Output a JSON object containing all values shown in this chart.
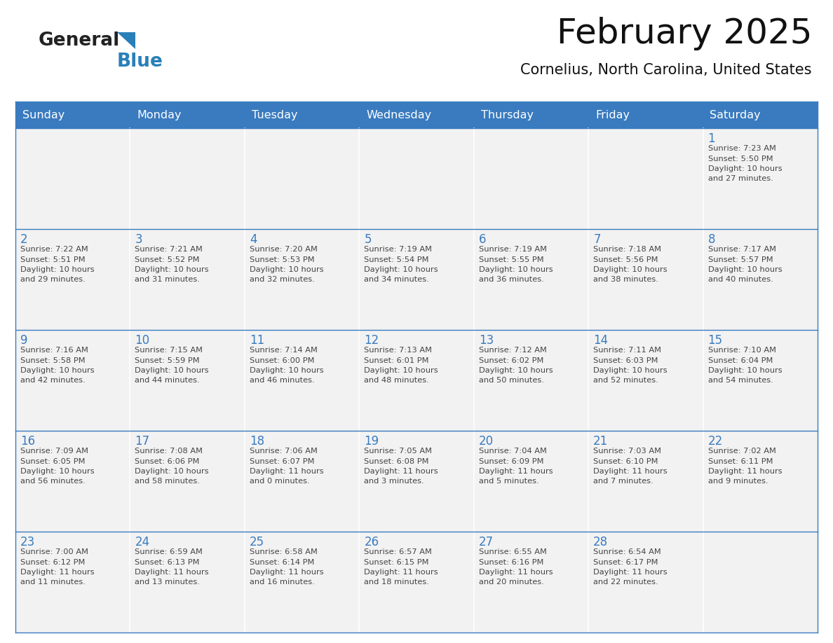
{
  "title": "February 2025",
  "subtitle": "Cornelius, North Carolina, United States",
  "header_color": "#3a7bbf",
  "header_text_color": "#ffffff",
  "cell_bg_even": "#f2f2f2",
  "cell_bg_odd": "#ffffff",
  "cell_border_color": "#3a7bbf",
  "day_number_color": "#3a7bbf",
  "text_color": "#444444",
  "days_of_week": [
    "Sunday",
    "Monday",
    "Tuesday",
    "Wednesday",
    "Thursday",
    "Friday",
    "Saturday"
  ],
  "weeks": [
    [
      {
        "day": null,
        "info": null
      },
      {
        "day": null,
        "info": null
      },
      {
        "day": null,
        "info": null
      },
      {
        "day": null,
        "info": null
      },
      {
        "day": null,
        "info": null
      },
      {
        "day": null,
        "info": null
      },
      {
        "day": 1,
        "info": "Sunrise: 7:23 AM\nSunset: 5:50 PM\nDaylight: 10 hours\nand 27 minutes."
      }
    ],
    [
      {
        "day": 2,
        "info": "Sunrise: 7:22 AM\nSunset: 5:51 PM\nDaylight: 10 hours\nand 29 minutes."
      },
      {
        "day": 3,
        "info": "Sunrise: 7:21 AM\nSunset: 5:52 PM\nDaylight: 10 hours\nand 31 minutes."
      },
      {
        "day": 4,
        "info": "Sunrise: 7:20 AM\nSunset: 5:53 PM\nDaylight: 10 hours\nand 32 minutes."
      },
      {
        "day": 5,
        "info": "Sunrise: 7:19 AM\nSunset: 5:54 PM\nDaylight: 10 hours\nand 34 minutes."
      },
      {
        "day": 6,
        "info": "Sunrise: 7:19 AM\nSunset: 5:55 PM\nDaylight: 10 hours\nand 36 minutes."
      },
      {
        "day": 7,
        "info": "Sunrise: 7:18 AM\nSunset: 5:56 PM\nDaylight: 10 hours\nand 38 minutes."
      },
      {
        "day": 8,
        "info": "Sunrise: 7:17 AM\nSunset: 5:57 PM\nDaylight: 10 hours\nand 40 minutes."
      }
    ],
    [
      {
        "day": 9,
        "info": "Sunrise: 7:16 AM\nSunset: 5:58 PM\nDaylight: 10 hours\nand 42 minutes."
      },
      {
        "day": 10,
        "info": "Sunrise: 7:15 AM\nSunset: 5:59 PM\nDaylight: 10 hours\nand 44 minutes."
      },
      {
        "day": 11,
        "info": "Sunrise: 7:14 AM\nSunset: 6:00 PM\nDaylight: 10 hours\nand 46 minutes."
      },
      {
        "day": 12,
        "info": "Sunrise: 7:13 AM\nSunset: 6:01 PM\nDaylight: 10 hours\nand 48 minutes."
      },
      {
        "day": 13,
        "info": "Sunrise: 7:12 AM\nSunset: 6:02 PM\nDaylight: 10 hours\nand 50 minutes."
      },
      {
        "day": 14,
        "info": "Sunrise: 7:11 AM\nSunset: 6:03 PM\nDaylight: 10 hours\nand 52 minutes."
      },
      {
        "day": 15,
        "info": "Sunrise: 7:10 AM\nSunset: 6:04 PM\nDaylight: 10 hours\nand 54 minutes."
      }
    ],
    [
      {
        "day": 16,
        "info": "Sunrise: 7:09 AM\nSunset: 6:05 PM\nDaylight: 10 hours\nand 56 minutes."
      },
      {
        "day": 17,
        "info": "Sunrise: 7:08 AM\nSunset: 6:06 PM\nDaylight: 10 hours\nand 58 minutes."
      },
      {
        "day": 18,
        "info": "Sunrise: 7:06 AM\nSunset: 6:07 PM\nDaylight: 11 hours\nand 0 minutes."
      },
      {
        "day": 19,
        "info": "Sunrise: 7:05 AM\nSunset: 6:08 PM\nDaylight: 11 hours\nand 3 minutes."
      },
      {
        "day": 20,
        "info": "Sunrise: 7:04 AM\nSunset: 6:09 PM\nDaylight: 11 hours\nand 5 minutes."
      },
      {
        "day": 21,
        "info": "Sunrise: 7:03 AM\nSunset: 6:10 PM\nDaylight: 11 hours\nand 7 minutes."
      },
      {
        "day": 22,
        "info": "Sunrise: 7:02 AM\nSunset: 6:11 PM\nDaylight: 11 hours\nand 9 minutes."
      }
    ],
    [
      {
        "day": 23,
        "info": "Sunrise: 7:00 AM\nSunset: 6:12 PM\nDaylight: 11 hours\nand 11 minutes."
      },
      {
        "day": 24,
        "info": "Sunrise: 6:59 AM\nSunset: 6:13 PM\nDaylight: 11 hours\nand 13 minutes."
      },
      {
        "day": 25,
        "info": "Sunrise: 6:58 AM\nSunset: 6:14 PM\nDaylight: 11 hours\nand 16 minutes."
      },
      {
        "day": 26,
        "info": "Sunrise: 6:57 AM\nSunset: 6:15 PM\nDaylight: 11 hours\nand 18 minutes."
      },
      {
        "day": 27,
        "info": "Sunrise: 6:55 AM\nSunset: 6:16 PM\nDaylight: 11 hours\nand 20 minutes."
      },
      {
        "day": 28,
        "info": "Sunrise: 6:54 AM\nSunset: 6:17 PM\nDaylight: 11 hours\nand 22 minutes."
      },
      {
        "day": null,
        "info": null
      }
    ]
  ],
  "logo_general_color": "#222222",
  "logo_blue_color": "#2980b9",
  "logo_triangle_color": "#2980b9"
}
